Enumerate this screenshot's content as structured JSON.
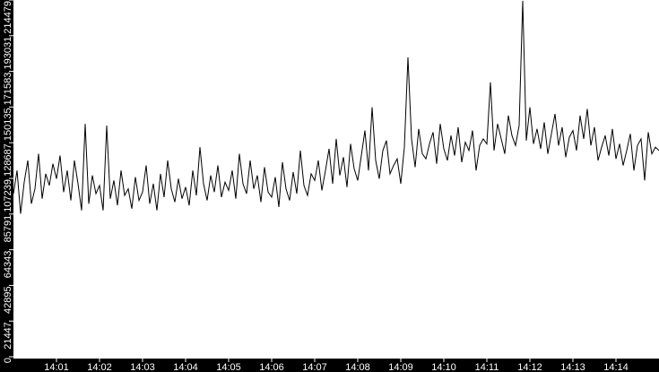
{
  "chart_data": {
    "type": "line",
    "title": "",
    "xlabel": "",
    "ylabel": "",
    "ylim": [
      0,
      214479
    ],
    "xlim": [
      "14:00:00",
      "14:15:00"
    ],
    "grid": false,
    "colors": {
      "background": "#ffffff",
      "axis": "#000000",
      "line": "#000000",
      "tick_text": "#ffffff"
    },
    "y_ticks": [
      "0",
      "21447",
      "42895",
      "64343",
      "85791",
      "107239",
      "128687",
      "150135",
      "171583",
      "193031",
      "214479"
    ],
    "x_ticks": [
      "14:01",
      "14:02",
      "14:03",
      "14:04",
      "14:05",
      "14:06",
      "14:07",
      "14:08",
      "14:09",
      "14:10",
      "14:11",
      "14:12",
      "14:13",
      "14:14"
    ],
    "series": [
      {
        "minutes": [
          "14:00",
          "14:01",
          "14:02",
          "14:03",
          "14:04",
          "14:05",
          "14:06",
          "14:07",
          "14:08",
          "14:09",
          "14:10",
          "14:11",
          "14:12",
          "14:13",
          "14:14",
          "14:15"
        ],
        "values_per_minute": [
          [
            98000,
            112000,
            86000,
            105000,
            118000,
            92000,
            101000,
            122000,
            95000,
            110000,
            103000,
            116000
          ],
          [
            107000,
            121000,
            99000,
            112000,
            94000,
            118000,
            104000,
            88000,
            140000,
            92000,
            109000,
            98000
          ],
          [
            103000,
            88000,
            139000,
            95000,
            106000,
            91000,
            112000,
            97000,
            101000,
            89000,
            108000,
            94000
          ],
          [
            99000,
            115000,
            92000,
            104000,
            88000,
            110000,
            96000,
            118000,
            101000,
            93000,
            107000,
            95000
          ],
          [
            102000,
            91000,
            112000,
            97000,
            126000,
            104000,
            94000,
            109000,
            99000,
            115000,
            96000,
            105000
          ],
          [
            100000,
            112000,
            95000,
            122000,
            104000,
            98000,
            118000,
            101000,
            109000,
            93000,
            114000,
            99000
          ],
          [
            96000,
            108000,
            90000,
            117000,
            101000,
            94000,
            111000,
            98000,
            124000,
            103000,
            97000,
            110000
          ],
          [
            106000,
            118000,
            100000,
            112000,
            125000,
            104000,
            131000,
            109000,
            120000,
            102000,
            128000,
            113000
          ],
          [
            106000,
            121000,
            136000,
            112000,
            150000,
            118000,
            107000,
            124000,
            130000,
            110000,
            115000,
            119000
          ],
          [
            104000,
            126000,
            180000,
            131000,
            114000,
            137000,
            122000,
            119000,
            128000,
            135000,
            116000,
            140000
          ],
          [
            125000,
            118000,
            133000,
            121000,
            138000,
            117000,
            129000,
            124000,
            136000,
            112000,
            127000,
            131000
          ],
          [
            128000,
            165000,
            124000,
            140000,
            131000,
            122000,
            145000,
            133000,
            127000,
            139000,
            214000,
            130000
          ],
          [
            150000,
            128000,
            137000,
            125000,
            141000,
            122000,
            134000,
            146000,
            127000,
            138000,
            120000,
            132000
          ],
          [
            136000,
            124000,
            145000,
            131000,
            149000,
            127000,
            138000,
            118000,
            126000,
            133000,
            121000,
            137000
          ],
          [
            119000,
            128000,
            115000,
            124000,
            134000,
            112000,
            127000,
            131000,
            106000,
            135000,
            122000,
            126000
          ],
          [
            124000
          ]
        ]
      }
    ]
  }
}
